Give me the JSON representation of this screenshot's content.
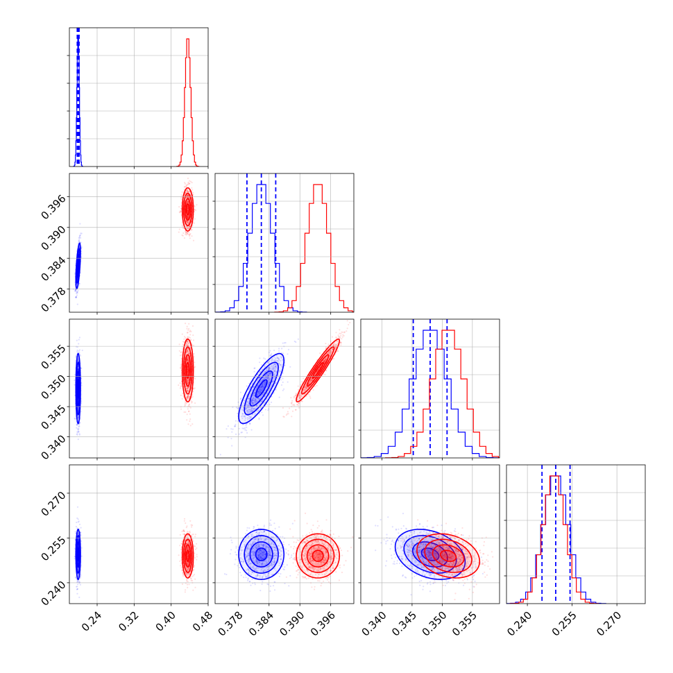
{
  "chart_data": {
    "type": "corner",
    "grid": true,
    "colors": {
      "blue": "#0000ff",
      "red": "#ff0000"
    },
    "parameters": [
      {
        "index": 0,
        "range": [
          0.18,
          0.48
        ],
        "ticks": [
          0.24,
          0.32,
          0.4,
          0.48
        ],
        "tick_labels": [
          "0.24",
          "0.32",
          "0.40",
          "0.48"
        ]
      },
      {
        "index": 1,
        "range": [
          0.3735,
          0.4005
        ],
        "ticks": [
          0.378,
          0.384,
          0.39,
          0.396
        ],
        "tick_labels": [
          "0.378",
          "0.384",
          "0.390",
          "0.396"
        ]
      },
      {
        "index": 2,
        "range": [
          0.3365,
          0.3595
        ],
        "ticks": [
          0.34,
          0.345,
          0.35,
          0.355
        ],
        "tick_labels": [
          "0.340",
          "0.345",
          "0.350",
          "0.355"
        ]
      },
      {
        "index": 3,
        "range": [
          0.233,
          0.2795
        ],
        "ticks": [
          0.24,
          0.255,
          0.27
        ],
        "tick_labels": [
          "0.240",
          "0.255",
          "0.270"
        ]
      }
    ],
    "series": [
      {
        "color": "#0000ff",
        "centers": [
          0.199,
          0.3825,
          0.348,
          0.2495
        ],
        "sigmas": [
          0.0025,
          0.0022,
          0.0029,
          0.0042
        ],
        "quantile_lines": [
          [
            0.197,
            0.199,
            0.201
          ],
          [
            0.3797,
            0.3825,
            0.3853
          ],
          [
            0.3452,
            0.348,
            0.3508
          ],
          [
            0.2449,
            0.2495,
            0.2543
          ]
        ],
        "correlations": [
          [
            0,
            1,
            0.6
          ],
          [
            1,
            2,
            0.8
          ],
          [
            1,
            3,
            0.0
          ],
          [
            2,
            3,
            -0.3
          ]
        ],
        "hist_peak_relative": [
          1.0,
          1.0,
          1.0,
          1.0
        ]
      },
      {
        "color": "#ff0000",
        "centers": [
          0.436,
          0.3935,
          0.351,
          0.249
        ],
        "sigmas": [
          0.006,
          0.0021,
          0.0026,
          0.0037
        ],
        "correlations": [
          [
            0,
            1,
            0.0
          ],
          [
            1,
            2,
            0.95
          ],
          [
            1,
            3,
            0.0
          ],
          [
            2,
            3,
            -0.25
          ]
        ],
        "hist_peak_relative": [
          1.0,
          1.0,
          1.0,
          1.0
        ]
      }
    ],
    "histogram_bins": 20
  }
}
